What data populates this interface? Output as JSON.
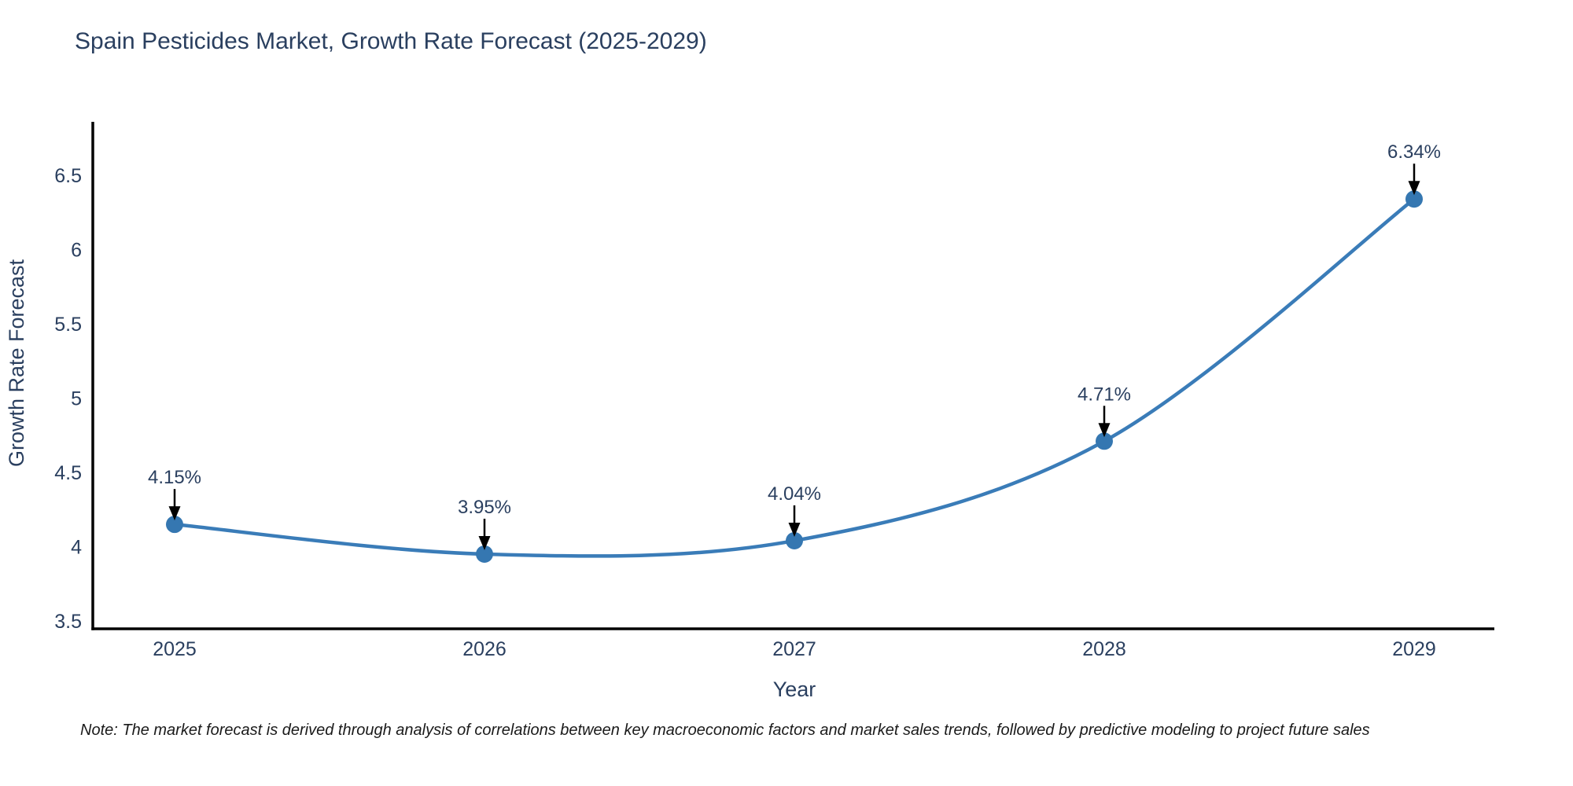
{
  "title": "Spain Pesticides Market, Growth Rate Forecast (2025-2029)",
  "note": "Note: The market forecast is derived through analysis of correlations between key macroeconomic factors and market sales trends, followed by predictive modeling to project future sales",
  "chart_data": {
    "type": "line",
    "title": "Spain Pesticides Market, Growth Rate Forecast (2025-2029)",
    "x": [
      "2025",
      "2026",
      "2027",
      "2028",
      "2029"
    ],
    "series": [
      {
        "name": "Growth Rate Forecast",
        "values": [
          4.15,
          3.95,
          4.04,
          4.71,
          6.34
        ]
      }
    ],
    "point_labels": [
      "4.15%",
      "3.95%",
      "4.04%",
      "4.71%",
      "6.34%"
    ],
    "xlabel": "Year",
    "ylabel": "Growth Rate Forecast",
    "yticks": [
      3.5,
      4,
      4.5,
      5,
      5.5,
      6,
      6.5
    ],
    "ylim": [
      3.44,
      6.86
    ],
    "grid": false,
    "legend_position": "none",
    "curve": "spline",
    "colors": {
      "line": "#3a7cb8",
      "marker": "#3577b1",
      "axis": "#000000",
      "text": "#2a3f5f",
      "annotation_arrow": "#000000"
    }
  }
}
